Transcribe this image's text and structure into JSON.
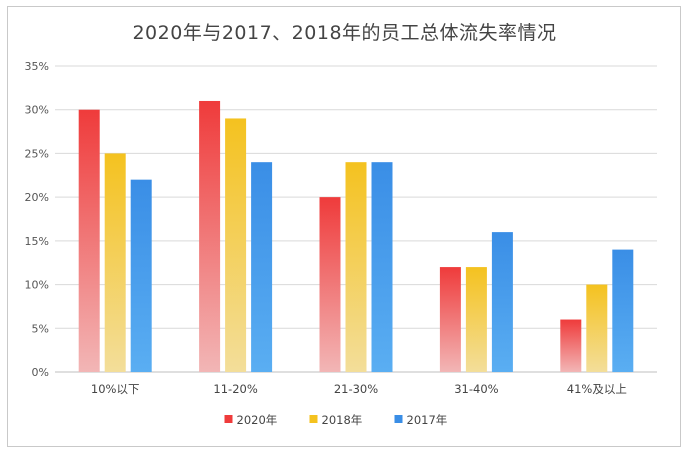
{
  "chart_data": {
    "type": "bar",
    "title": "2020年与2017、2018年的员工总体流失率情况",
    "categories": [
      "10%以下",
      "11-20%",
      "21-30%",
      "31-40%",
      "41%及以上"
    ],
    "series": [
      {
        "name": "2020年",
        "values": [
          30,
          31,
          20,
          12,
          6
        ]
      },
      {
        "name": "2018年",
        "values": [
          25,
          29,
          24,
          12,
          10
        ]
      },
      {
        "name": "2017年",
        "values": [
          22,
          24,
          24,
          16,
          14
        ]
      }
    ],
    "y_ticks": [
      "0%",
      "5%",
      "10%",
      "15%",
      "20%",
      "25%",
      "30%",
      "35%"
    ],
    "ylim": [
      0,
      35
    ],
    "grid": true,
    "legend_position": "bottom"
  },
  "colors": {
    "2020年": {
      "top": "#ef3b3b",
      "bottom": "#f2b6b6"
    },
    "2018年": {
      "top": "#f4c21f",
      "bottom": "#f3de9a"
    },
    "2017年": {
      "top": "#3a8ee6",
      "bottom": "#5aaef2"
    },
    "grid": "#d9d9d9",
    "axis": "#bfbfbf"
  }
}
